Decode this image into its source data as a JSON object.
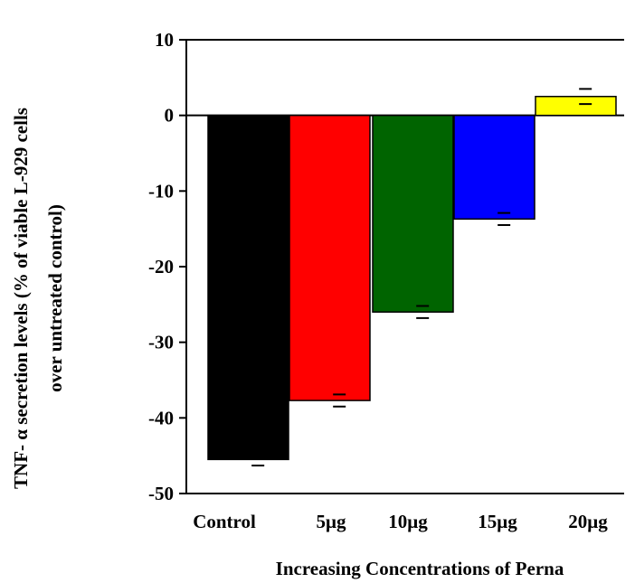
{
  "chart_data": {
    "type": "bar",
    "categories": [
      "Control",
      "5μg",
      "10μg",
      "15μg",
      "20μg"
    ],
    "values": [
      -45.5,
      -37.7,
      -26.0,
      -13.7,
      2.5
    ],
    "error": [
      0.8,
      0.8,
      0.8,
      0.8,
      1.0
    ],
    "colors": [
      "#000000",
      "#ff0000",
      "#006400",
      "#0000ff",
      "#ffff00"
    ],
    "xlabel": "Increasing Concentrations of Perna",
    "ylabel_line1": "TNF- α  secretion levels (% of viable L-929 cells",
    "ylabel_line2": "over untreated control)",
    "ylim": [
      -50,
      10
    ],
    "yticks": [
      10,
      0,
      -10,
      -20,
      -30,
      -40,
      -50
    ]
  }
}
